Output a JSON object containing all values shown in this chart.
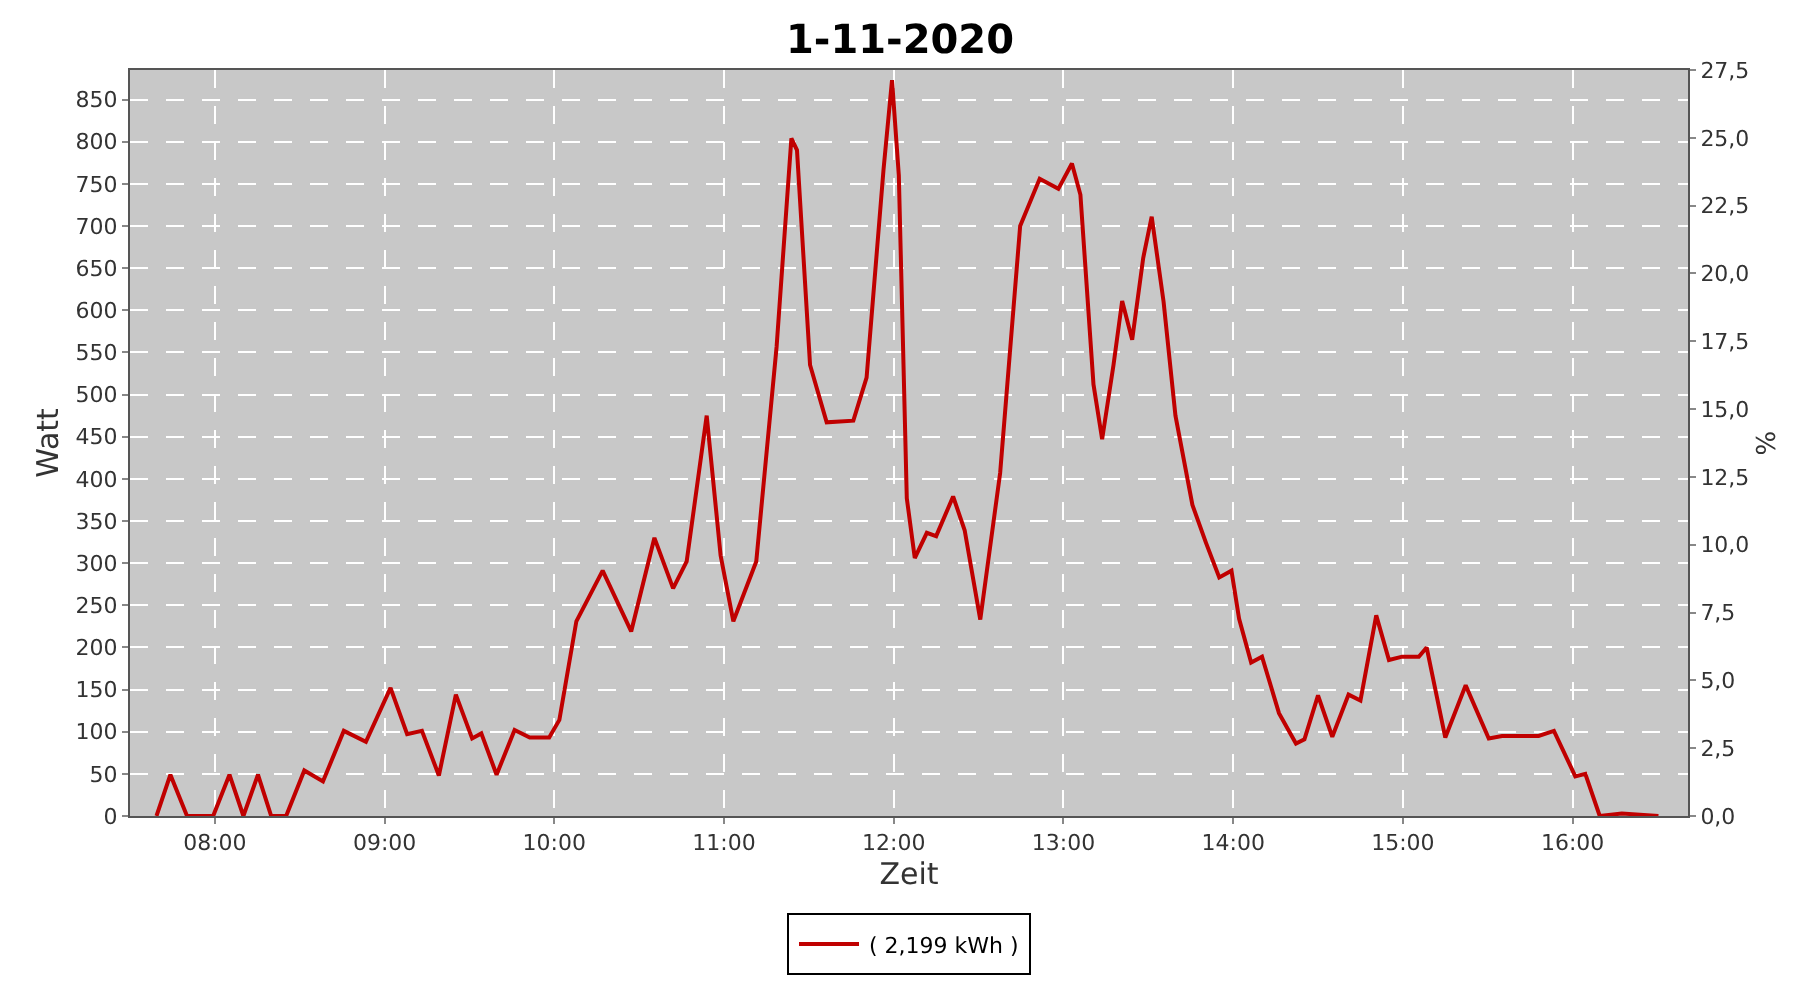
{
  "chart_data": {
    "type": "line",
    "title": "1-11-2020",
    "xlabel": "Zeit",
    "ylabel": "Watt",
    "y2label": "%",
    "x": [
      7.656,
      7.738,
      7.836,
      7.92,
      7.99,
      8.086,
      8.168,
      8.254,
      8.332,
      8.42,
      8.527,
      8.637,
      8.76,
      8.89,
      9.035,
      9.133,
      9.22,
      9.32,
      9.42,
      9.516,
      9.57,
      9.66,
      9.766,
      9.855,
      9.97,
      10.03,
      10.13,
      10.285,
      10.453,
      10.59,
      10.7,
      10.78,
      10.898,
      10.98,
      11.055,
      11.19,
      11.31,
      11.397,
      11.43,
      11.507,
      11.605,
      11.762,
      11.84,
      11.94,
      11.99,
      12.03,
      12.077,
      12.124,
      12.195,
      12.25,
      12.35,
      12.418,
      12.51,
      12.627,
      12.745,
      12.86,
      12.97,
      13.05,
      13.1,
      13.177,
      13.228,
      13.295,
      13.346,
      13.405,
      13.47,
      13.52,
      13.59,
      13.66,
      13.76,
      13.84,
      13.918,
      13.99,
      14.035,
      14.106,
      14.17,
      14.27,
      14.37,
      14.42,
      14.5,
      14.584,
      14.68,
      14.75,
      14.843,
      14.918,
      14.996,
      15.094,
      15.14,
      15.25,
      15.37,
      15.506,
      15.584,
      15.8,
      15.89,
      16.016,
      16.075,
      16.16,
      16.29,
      16.506
    ],
    "series": [
      {
        "name": "( 2,199 kWh )",
        "color": "#c00000",
        "values": [
          0,
          49,
          0,
          0,
          0,
          49,
          0,
          49,
          0,
          0,
          54,
          41,
          101,
          88,
          152,
          97,
          101,
          48,
          144,
          92,
          98,
          49,
          102,
          93,
          93,
          114,
          231,
          291,
          219,
          330,
          270,
          302,
          475,
          309,
          231,
          302,
          557,
          804,
          790,
          535,
          467,
          469,
          520,
          767,
          873,
          760,
          377,
          306,
          336,
          332,
          379,
          339,
          233,
          407,
          700,
          756,
          744,
          774,
          737,
          512,
          447,
          535,
          611,
          565,
          662,
          711,
          610,
          475,
          369,
          324,
          283,
          291,
          234,
          182,
          189,
          122,
          86,
          91,
          143,
          94,
          144,
          137,
          238,
          185,
          189,
          189,
          200,
          93,
          155,
          92,
          95,
          95,
          101,
          47,
          50,
          0,
          3,
          0
        ]
      }
    ],
    "xlim": [
      7.5,
      16.68
    ],
    "xticks": [
      {
        "value": 8,
        "label": "08:00"
      },
      {
        "value": 9,
        "label": "09:00"
      },
      {
        "value": 10,
        "label": "10:00"
      },
      {
        "value": 11,
        "label": "11:00"
      },
      {
        "value": 12,
        "label": "12:00"
      },
      {
        "value": 13,
        "label": "13:00"
      },
      {
        "value": 14,
        "label": "14:00"
      },
      {
        "value": 15,
        "label": "15:00"
      },
      {
        "value": 16,
        "label": "16:00"
      }
    ],
    "ylim": [
      0,
      885
    ],
    "yticks": [
      0,
      50,
      100,
      150,
      200,
      250,
      300,
      350,
      400,
      450,
      500,
      550,
      600,
      650,
      700,
      750,
      800,
      850
    ],
    "y2lim": [
      0,
      27.5
    ],
    "y2ticks": [
      {
        "value": 0,
        "label": "0,0"
      },
      {
        "value": 2.5,
        "label": "2,5"
      },
      {
        "value": 5,
        "label": "5,0"
      },
      {
        "value": 7.5,
        "label": "7,5"
      },
      {
        "value": 10,
        "label": "10,0"
      },
      {
        "value": 12.5,
        "label": "12,5"
      },
      {
        "value": 15,
        "label": "15,0"
      },
      {
        "value": 17.5,
        "label": "17,5"
      },
      {
        "value": 20,
        "label": "20,0"
      },
      {
        "value": 22.5,
        "label": "22,5"
      },
      {
        "value": 25,
        "label": "25,0"
      },
      {
        "value": 27.5,
        "label": "27,5"
      }
    ],
    "grid": true,
    "legend": "bottom",
    "marker": "none",
    "line_style": "solid"
  }
}
